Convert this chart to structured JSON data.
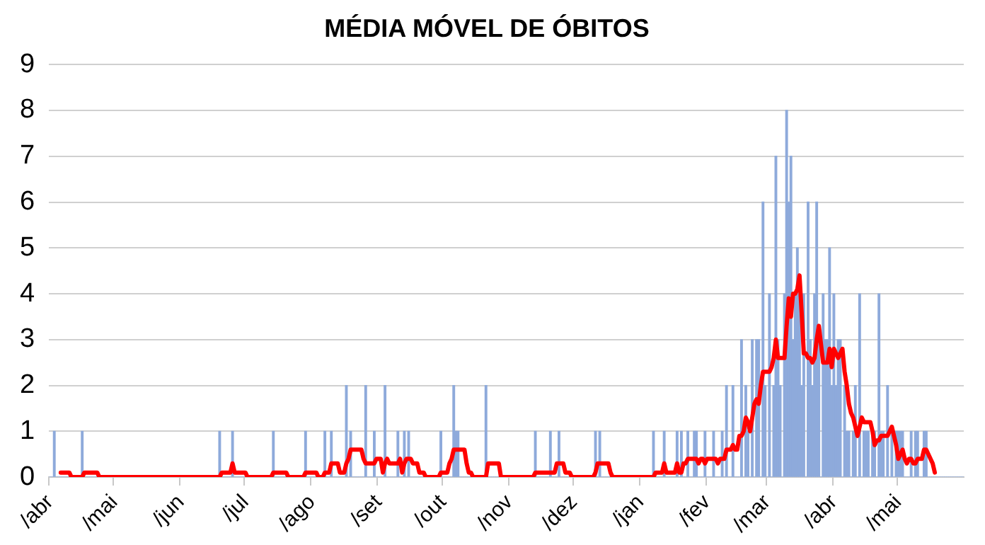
{
  "chart_data": {
    "type": "bar",
    "title": "MÉDIA MÓVEL DE ÓBITOS",
    "categories": [
      "/abr",
      null,
      null,
      null,
      null,
      null,
      null,
      null,
      null,
      null,
      null,
      null,
      null,
      null,
      null,
      null,
      null,
      null,
      null,
      null,
      null,
      null,
      null,
      null,
      null,
      null,
      null,
      null,
      null,
      null,
      "/mai",
      null,
      null,
      null,
      null,
      null,
      null,
      null,
      null,
      null,
      null,
      null,
      null,
      null,
      null,
      null,
      null,
      null,
      null,
      null,
      null,
      null,
      null,
      null,
      null,
      null,
      null,
      null,
      null,
      null,
      null,
      "/jun",
      null,
      null,
      null,
      null,
      null,
      null,
      null,
      null,
      null,
      null,
      null,
      null,
      null,
      null,
      null,
      null,
      null,
      null,
      null,
      null,
      null,
      null,
      null,
      null,
      null,
      null,
      null,
      null,
      null,
      "/jul",
      null,
      null,
      null,
      null,
      null,
      null,
      null,
      null,
      null,
      null,
      null,
      null,
      null,
      null,
      null,
      null,
      null,
      null,
      null,
      null,
      null,
      null,
      null,
      null,
      null,
      null,
      null,
      null,
      null,
      null,
      "/ago",
      null,
      null,
      null,
      null,
      null,
      null,
      null,
      null,
      null,
      null,
      null,
      null,
      null,
      null,
      null,
      null,
      null,
      null,
      null,
      null,
      null,
      null,
      null,
      null,
      null,
      null,
      null,
      null,
      null,
      null,
      "/set",
      null,
      null,
      null,
      null,
      null,
      null,
      null,
      null,
      null,
      null,
      null,
      null,
      null,
      null,
      null,
      null,
      null,
      null,
      null,
      null,
      null,
      null,
      null,
      null,
      null,
      null,
      null,
      null,
      null,
      "/out",
      null,
      null,
      null,
      null,
      null,
      null,
      null,
      null,
      null,
      null,
      null,
      null,
      null,
      null,
      null,
      null,
      null,
      null,
      null,
      null,
      null,
      null,
      null,
      null,
      null,
      null,
      null,
      null,
      null,
      null,
      "/nov",
      null,
      null,
      null,
      null,
      null,
      null,
      null,
      null,
      null,
      null,
      null,
      null,
      null,
      null,
      null,
      null,
      null,
      null,
      null,
      null,
      null,
      null,
      null,
      null,
      null,
      null,
      null,
      null,
      null,
      "/dez",
      null,
      null,
      null,
      null,
      null,
      null,
      null,
      null,
      null,
      null,
      null,
      null,
      null,
      null,
      null,
      null,
      null,
      null,
      null,
      null,
      null,
      null,
      null,
      null,
      null,
      null,
      null,
      null,
      null,
      null,
      "/jan",
      null,
      null,
      null,
      null,
      null,
      null,
      null,
      null,
      null,
      null,
      null,
      null,
      null,
      null,
      null,
      null,
      null,
      null,
      null,
      null,
      null,
      null,
      null,
      null,
      null,
      null,
      null,
      null,
      null,
      null,
      "/fev",
      null,
      null,
      null,
      null,
      null,
      null,
      null,
      null,
      null,
      null,
      null,
      null,
      null,
      null,
      null,
      null,
      null,
      null,
      null,
      null,
      null,
      null,
      null,
      null,
      null,
      null,
      null,
      "/mar",
      null,
      null,
      null,
      null,
      null,
      null,
      null,
      null,
      null,
      null,
      null,
      null,
      null,
      null,
      null,
      null,
      null,
      null,
      null,
      null,
      null,
      null,
      null,
      null,
      null,
      null,
      null,
      null,
      null,
      null,
      "/abr",
      null,
      null,
      null,
      null,
      null,
      null,
      null,
      null,
      null,
      null,
      null,
      null,
      null,
      null,
      null,
      null,
      null,
      null,
      null,
      null,
      null,
      null,
      null,
      null,
      null,
      null,
      null,
      null,
      null,
      "/mai",
      null,
      null,
      null,
      null,
      null,
      null,
      null,
      null,
      null,
      null,
      null,
      null,
      null,
      null,
      null,
      null,
      null,
      null,
      null,
      null,
      null,
      null,
      null,
      null,
      null,
      null,
      null,
      null,
      null,
      null
    ],
    "ylim": [
      0,
      9
    ],
    "yticks": [
      0,
      1,
      2,
      3,
      4,
      5,
      6,
      7,
      8,
      9
    ],
    "grid": "y",
    "marker": "none",
    "series": [
      {
        "color": "#8eaadb",
        "values": [
          0,
          0,
          1,
          0,
          0,
          0,
          0,
          0,
          0,
          0,
          0,
          0,
          0,
          0,
          0,
          1,
          0,
          0,
          0,
          0,
          0,
          0,
          0,
          0,
          0,
          0,
          0,
          0,
          0,
          0,
          0,
          0,
          0,
          0,
          0,
          0,
          0,
          0,
          0,
          0,
          0,
          0,
          0,
          0,
          0,
          0,
          0,
          0,
          0,
          0,
          0,
          0,
          0,
          0,
          0,
          0,
          0,
          0,
          0,
          0,
          0,
          0,
          0,
          0,
          0,
          0,
          0,
          0,
          0,
          0,
          0,
          0,
          0,
          0,
          0,
          0,
          0,
          0,
          0,
          1,
          0,
          0,
          0,
          0,
          0,
          1,
          0,
          0,
          0,
          0,
          0,
          0,
          0,
          0,
          0,
          0,
          0,
          0,
          0,
          0,
          0,
          0,
          0,
          0,
          1,
          0,
          0,
          0,
          0,
          0,
          0,
          0,
          0,
          0,
          0,
          0,
          0,
          0,
          0,
          1,
          0,
          0,
          0,
          0,
          0,
          0,
          0,
          0,
          1,
          0,
          0,
          1,
          0,
          0,
          0,
          0,
          0,
          0,
          2,
          0,
          1,
          0,
          0,
          0,
          0,
          0,
          0,
          2,
          0,
          0,
          0,
          1,
          0,
          0,
          0,
          0,
          2,
          0,
          0,
          0,
          0,
          0,
          1,
          0,
          0,
          1,
          0,
          1,
          0,
          0,
          0,
          0,
          0,
          0,
          0,
          0,
          0,
          0,
          0,
          0,
          0,
          0,
          1,
          0,
          0,
          0,
          0,
          0,
          2,
          1,
          1,
          0,
          0,
          0,
          0,
          0,
          0,
          0,
          0,
          0,
          0,
          0,
          0,
          2,
          0,
          0,
          0,
          0,
          0,
          0,
          0,
          0,
          0,
          0,
          0,
          0,
          0,
          0,
          0,
          0,
          0,
          0,
          0,
          0,
          0,
          0,
          1,
          0,
          0,
          0,
          0,
          0,
          0,
          1,
          0,
          0,
          0,
          1,
          0,
          0,
          0,
          0,
          0,
          0,
          0,
          0,
          0,
          0,
          0,
          0,
          0,
          0,
          0,
          0,
          1,
          0,
          1,
          0,
          0,
          0,
          0,
          0,
          0,
          0,
          0,
          0,
          0,
          0,
          0,
          0,
          0,
          0,
          0,
          0,
          0,
          0,
          0,
          0,
          0,
          0,
          0,
          1,
          0,
          0,
          0,
          0,
          1,
          0,
          0,
          0,
          0,
          0,
          1,
          0,
          1,
          0,
          0,
          1,
          0,
          0,
          1,
          1,
          0,
          0,
          0,
          1,
          0,
          0,
          0,
          1,
          0,
          0,
          0,
          1,
          0,
          2,
          0,
          0,
          2,
          0,
          0,
          0,
          3,
          0,
          2,
          1,
          0,
          3,
          0,
          3,
          3,
          0,
          6,
          2,
          0,
          4,
          0,
          2,
          7,
          3,
          2,
          0,
          4,
          8,
          6,
          7,
          3,
          4,
          5,
          4,
          2,
          4,
          0,
          6,
          3,
          2,
          4,
          6,
          3,
          0,
          4,
          3,
          3,
          5,
          2,
          4,
          2,
          3,
          3,
          0,
          2,
          1,
          1,
          0,
          1,
          2,
          0,
          4,
          0,
          1,
          1,
          1,
          0,
          1,
          1,
          0,
          4,
          1,
          1,
          0,
          2,
          0,
          1,
          0,
          1,
          1,
          1,
          1,
          0,
          0,
          0,
          1,
          0,
          1,
          1,
          0,
          0,
          1,
          1,
          0,
          0,
          0,
          0,
          0,
          0,
          0,
          0,
          0,
          0,
          0,
          0,
          0,
          0,
          0,
          0,
          0
        ]
      },
      {
        "type": "line",
        "color": "#ff0000",
        "values": [
          null,
          null,
          null,
          null,
          null,
          0.1,
          0.1,
          0.1,
          0.1,
          0.1,
          0,
          0,
          0,
          0,
          0,
          0,
          0.1,
          0.1,
          0.1,
          0.1,
          0.1,
          0.1,
          0.1,
          0,
          0,
          0,
          0,
          0,
          0,
          0,
          0,
          0,
          0,
          0,
          0,
          0,
          0,
          0,
          0,
          0,
          0,
          0,
          0,
          0,
          0,
          0,
          0,
          0,
          0,
          0,
          0,
          0,
          0,
          0,
          0,
          0,
          0,
          0,
          0,
          0,
          0,
          0,
          0,
          0,
          0,
          0,
          0,
          0,
          0,
          0,
          0,
          0,
          0,
          0,
          0,
          0,
          0,
          0,
          0,
          0,
          0.1,
          0.1,
          0.1,
          0.1,
          0.1,
          0.3,
          0.1,
          0.1,
          0.1,
          0.1,
          0.1,
          0.1,
          0,
          0,
          0,
          0,
          0,
          0,
          0,
          0,
          0,
          0,
          0,
          0,
          0.1,
          0.1,
          0.1,
          0.1,
          0.1,
          0.1,
          0.1,
          0,
          0,
          0,
          0,
          0,
          0,
          0,
          0,
          0.1,
          0.1,
          0.1,
          0.1,
          0.1,
          0.1,
          0,
          0,
          0,
          0.1,
          0.1,
          0.1,
          0.3,
          0.3,
          0.3,
          0.3,
          0.1,
          0.1,
          0.1,
          0.3,
          0.4,
          0.6,
          0.6,
          0.6,
          0.6,
          0.6,
          0.6,
          0.4,
          0.3,
          0.3,
          0.3,
          0.3,
          0.3,
          0.4,
          0.4,
          0.4,
          0.1,
          0.3,
          0.4,
          0.3,
          0.3,
          0.3,
          0.3,
          0.3,
          0.4,
          0.1,
          0.3,
          0.4,
          0.4,
          0.4,
          0.3,
          0.3,
          0.3,
          0.1,
          0.1,
          0.1,
          0,
          0,
          0,
          0,
          0,
          0,
          0,
          0.1,
          0.1,
          0.1,
          0.1,
          0.3,
          0.4,
          0.6,
          0.6,
          0.6,
          0.6,
          0.6,
          0.6,
          0.3,
          0.1,
          0.1,
          0,
          0,
          0,
          0,
          0,
          0,
          0,
          0.3,
          0.3,
          0.3,
          0.3,
          0.3,
          0.3,
          0,
          0,
          0,
          0,
          0,
          0,
          0,
          0,
          0,
          0,
          0,
          0,
          0,
          0,
          0,
          0,
          0.1,
          0.1,
          0.1,
          0.1,
          0.1,
          0.1,
          0.1,
          0.1,
          0.1,
          0.1,
          0.3,
          0.3,
          0.3,
          0.3,
          0.1,
          0.1,
          0.1,
          0,
          0,
          0,
          0,
          0,
          0,
          0,
          0,
          0,
          0,
          0,
          0.1,
          0.3,
          0.3,
          0.3,
          0.3,
          0.3,
          0.3,
          0.1,
          0,
          0,
          0,
          0,
          0,
          0,
          0,
          0,
          0,
          0,
          0,
          0,
          0,
          0,
          0,
          0,
          0,
          0,
          0,
          0,
          0.1,
          0.1,
          0.1,
          0.1,
          0.3,
          0.1,
          0.1,
          0.1,
          0.1,
          0.1,
          0.3,
          0.1,
          0.1,
          0.3,
          0.3,
          0.4,
          0.4,
          0.4,
          0.4,
          0.4,
          0.3,
          0.4,
          0.4,
          0.3,
          0.4,
          0.4,
          0.4,
          0.4,
          0.4,
          0.3,
          0.4,
          0.4,
          0.4,
          0.6,
          0.6,
          0.6,
          0.7,
          0.6,
          0.6,
          0.9,
          0.9,
          1.0,
          1.3,
          1.2,
          1.0,
          1.3,
          1.6,
          1.7,
          1.6,
          2.0,
          2.3,
          2.3,
          2.3,
          2.3,
          2.4,
          2.6,
          3.0,
          2.6,
          2.6,
          2.6,
          2.6,
          3.3,
          3.9,
          3.5,
          4.0,
          4.0,
          4.1,
          4.4,
          3.6,
          2.7,
          2.7,
          2.6,
          2.6,
          2.5,
          2.6,
          3.0,
          3.3,
          2.9,
          2.5,
          2.5,
          2.5,
          2.8,
          2.4,
          2.8,
          2.7,
          2.6,
          2.7,
          2.8,
          2.3,
          2.0,
          1.6,
          1.4,
          1.3,
          1.1,
          0.9,
          1.1,
          1.3,
          1.2,
          1.2,
          1.2,
          1.2,
          1.0,
          0.7,
          0.8,
          0.8,
          0.9,
          0.9,
          0.9,
          0.9,
          1.0,
          1.1,
          0.9,
          0.7,
          0.4,
          0.5,
          0.6,
          0.4,
          0.3,
          0.4,
          0.4,
          0.3,
          0.3,
          0.4,
          0.4,
          0.4,
          0.6,
          0.6,
          0.5,
          0.4,
          0.3,
          0.1,
          null,
          null,
          null,
          null,
          null,
          null,
          null,
          null,
          null,
          null,
          null,
          null,
          null
        ]
      }
    ]
  }
}
